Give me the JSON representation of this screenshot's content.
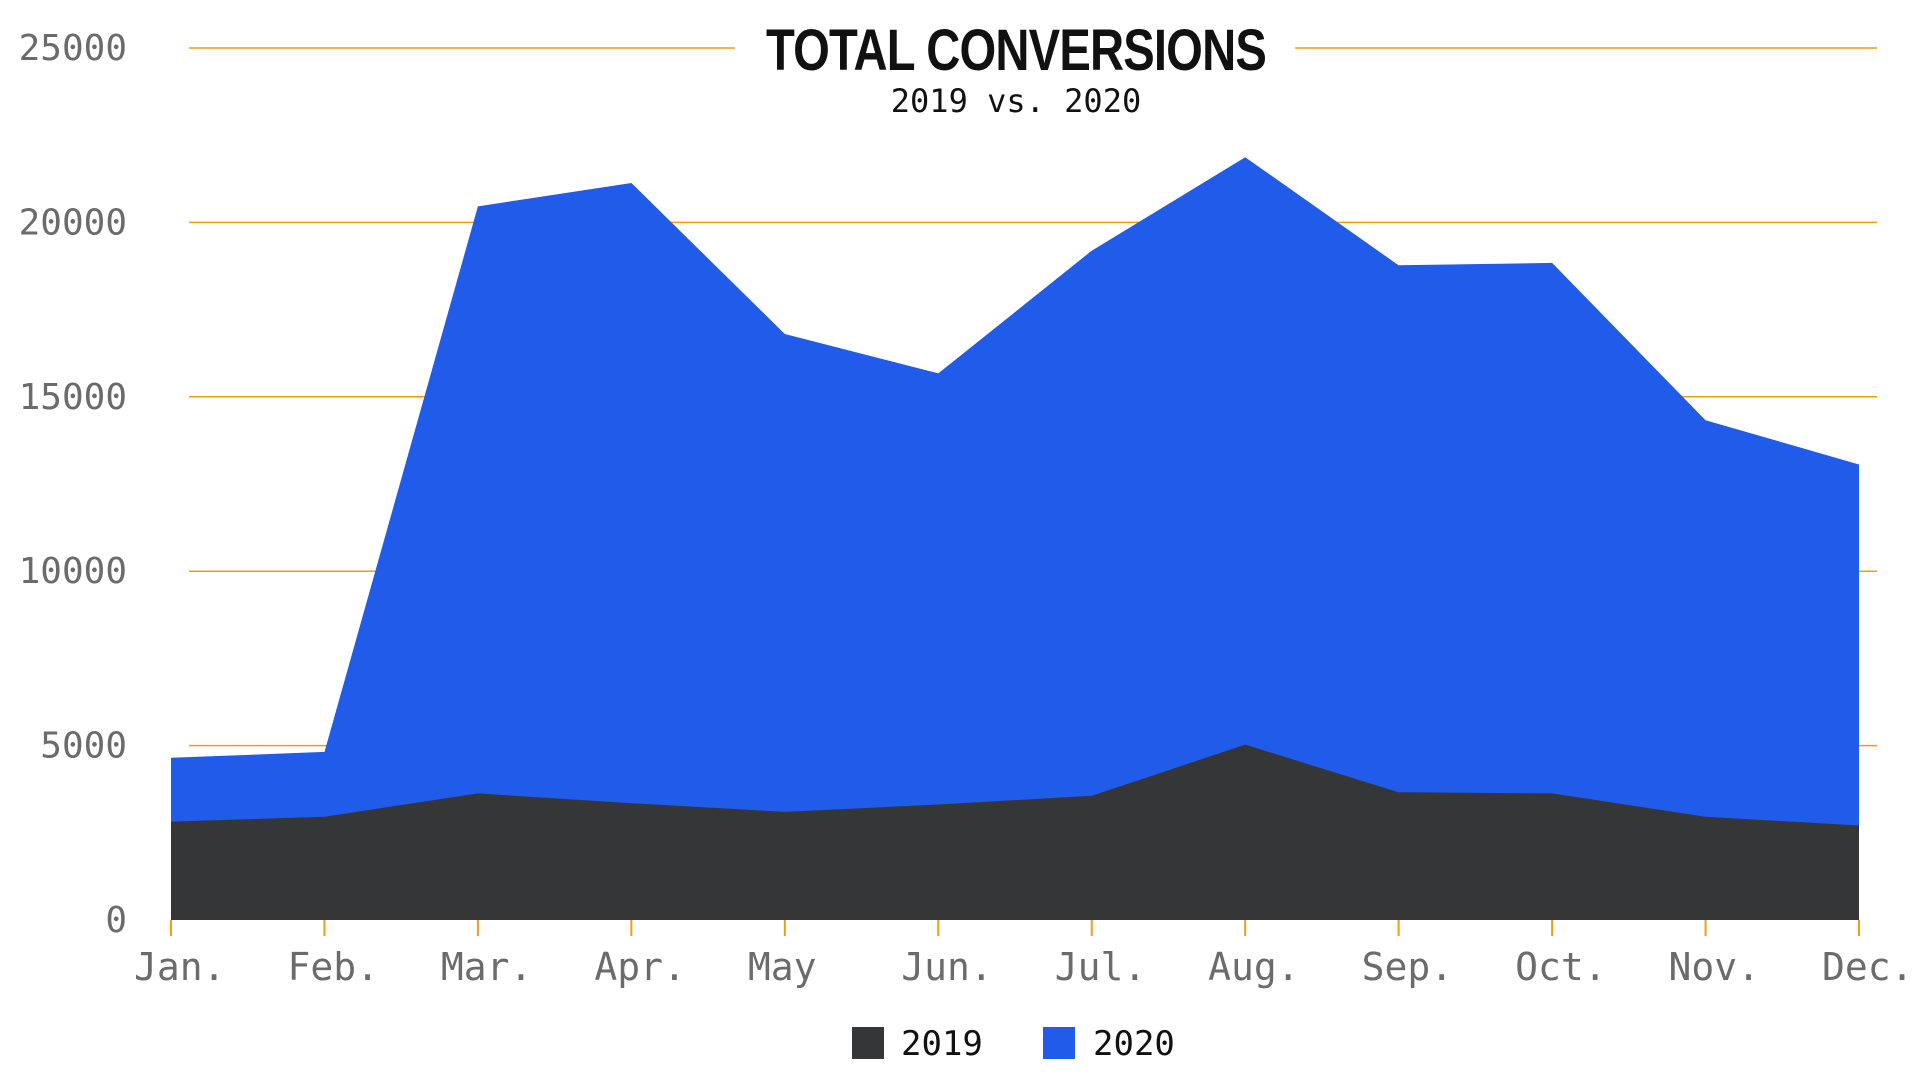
{
  "chart_data": {
    "type": "area",
    "title": "TOTAL CONVERSIONS",
    "subtitle": "2019 vs. 2020",
    "xlabel": "",
    "ylabel": "",
    "categories": [
      "Jan.",
      "Feb.",
      "Mar.",
      "Apr.",
      "May",
      "Jun.",
      "Jul.",
      "Aug.",
      "Sep.",
      "Oct.",
      "Nov.",
      "Dec."
    ],
    "ylim": [
      0,
      25000
    ],
    "yticks": [
      "0",
      "5000",
      "10000",
      "15000",
      "20000",
      "25000"
    ],
    "grid": true,
    "legend_position": "bottom-center",
    "series": [
      {
        "name": "2020",
        "color": "#215bea",
        "values": [
          4650,
          4820,
          20460,
          21130,
          16800,
          15670,
          19190,
          21870,
          18770,
          18840,
          14330,
          13060
        ]
      },
      {
        "name": "2019",
        "color": "#353638",
        "values": [
          2820,
          2960,
          3630,
          3350,
          3100,
          3310,
          3560,
          5030,
          3660,
          3630,
          2960,
          2710
        ]
      }
    ],
    "legend": [
      {
        "label": "2019",
        "color": "#353638"
      },
      {
        "label": "2020",
        "color": "#215bea"
      }
    ],
    "grid_color": "#f39c12"
  }
}
